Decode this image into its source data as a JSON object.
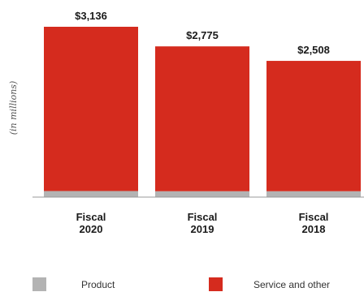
{
  "chart_data": {
    "type": "bar",
    "stacked": true,
    "ylabel": "(in millions)",
    "categories": [
      "Fiscal\n2020",
      "Fiscal\n2019",
      "Fiscal\n2018"
    ],
    "totals": [
      "$3,136",
      "$2,775",
      "$2,508"
    ],
    "series": [
      {
        "name": "Product",
        "color": "#b3b3b3",
        "values": [
          112,
          108,
          108
        ]
      },
      {
        "name": "Service and other",
        "color": "#d52b1e",
        "values": [
          3024,
          2667,
          2400
        ]
      }
    ],
    "ylim": [
      0,
      3136
    ],
    "grid": false,
    "legend_position": "bottom"
  }
}
